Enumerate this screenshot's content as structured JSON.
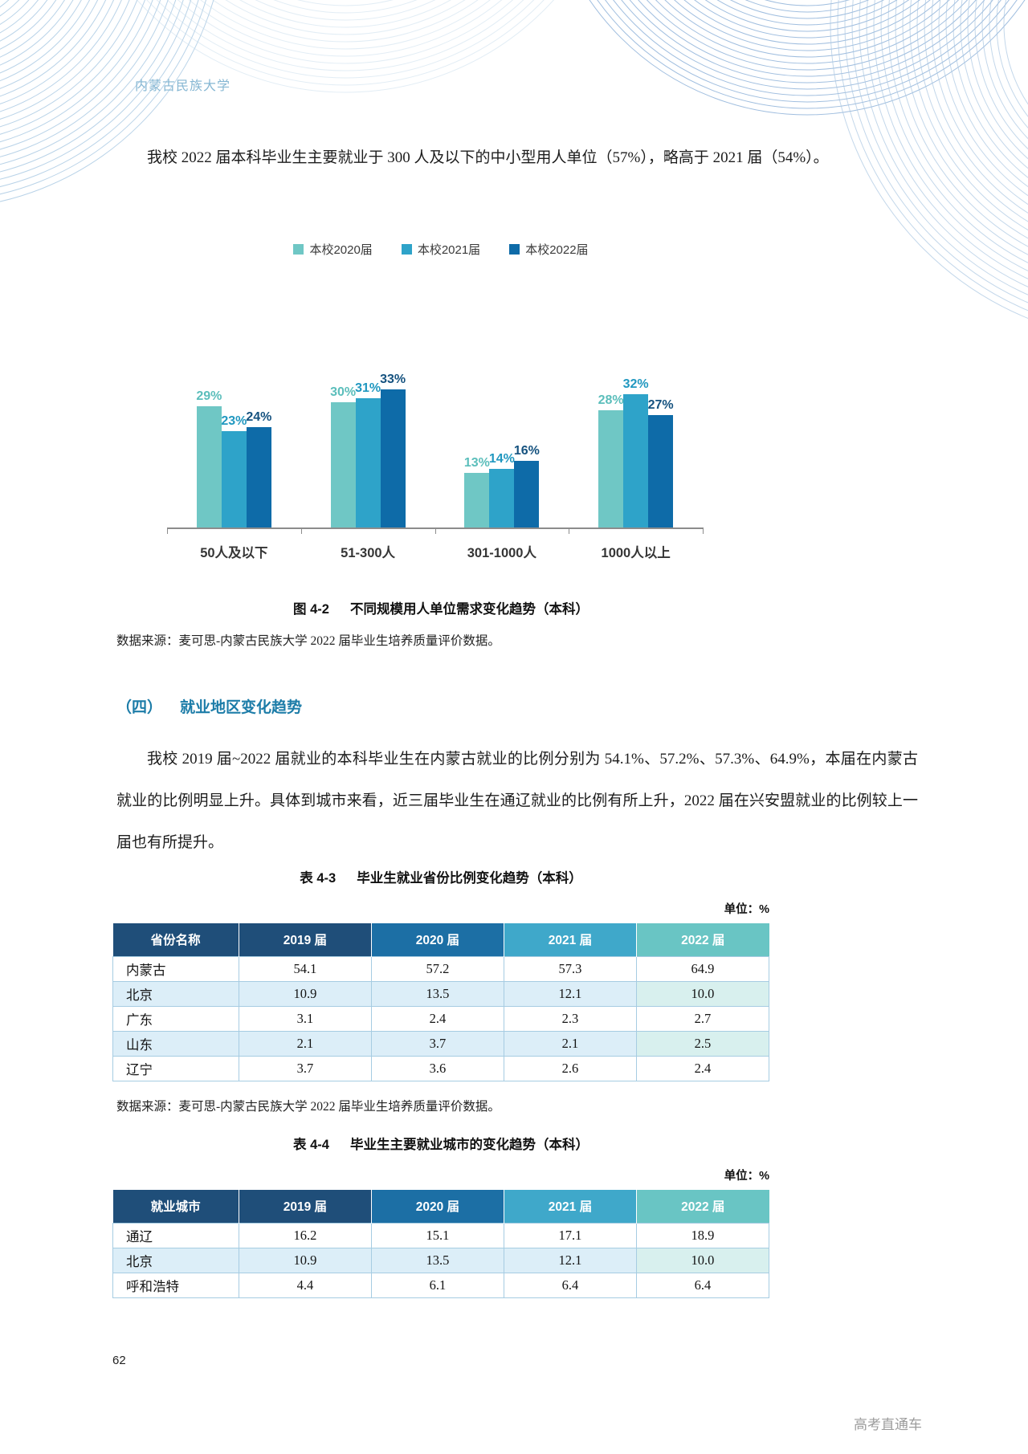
{
  "header": {
    "brand": "内蒙古民族大学"
  },
  "paragraphs": {
    "p1": "我校 2022 届本科毕业生主要就业于 300 人及以下的中小型用人单位（57%），略高于 2021 届（54%）。",
    "p2": "我校 2019 届~2022 届就业的本科毕业生在内蒙古就业的比例分别为 54.1%、57.2%、57.3%、64.9%，本届在内蒙古就业的比例明显上升。具体到城市来看，近三届毕业生在通辽就业的比例有所上升，2022 届在兴安盟就业的比例较上一届也有所提升。"
  },
  "section_heading": {
    "number": "（四）",
    "title": "就业地区变化趋势",
    "color": "#1c7ca8"
  },
  "chart_data": {
    "type": "bar",
    "caption_label": "图 4-2",
    "title": "不同规模用人单位需求变化趋势（本科）",
    "categories": [
      "50人及以下",
      "51-300人",
      "301-1000人",
      "1000人以上"
    ],
    "series": [
      {
        "name": "本校2020届",
        "color": "#6fc7c5",
        "label_color": "#5bbebb",
        "values": [
          29,
          30,
          13,
          28
        ]
      },
      {
        "name": "本校2021届",
        "color": "#2ea3c9",
        "label_color": "#2198c0",
        "values": [
          23,
          31,
          14,
          32
        ]
      },
      {
        "name": "本校2022届",
        "color": "#0e6ba8",
        "label_color": "#15527f",
        "values": [
          24,
          33,
          16,
          27
        ]
      }
    ],
    "value_suffix": "%",
    "ylim": [
      0,
      35
    ],
    "grid": false,
    "legend_position": "top",
    "axis_color": "#8c8c8c"
  },
  "figure_source": "数据来源：麦可思-内蒙古民族大学 2022 届毕业生培养质量评价数据。",
  "table1": {
    "caption_label": "表 4-3",
    "caption_title": "毕业生就业省份比例变化趋势（本科）",
    "unit_label": "单位：%",
    "headers": [
      "省份名称",
      "2019 届",
      "2020 届",
      "2021 届",
      "2022 届"
    ],
    "header_colors": [
      "#1f4e79",
      "#1f4e79",
      "#1c6fa5",
      "#3fa8ca",
      "#69c5c4"
    ],
    "rows": [
      [
        "内蒙古",
        "54.1",
        "57.2",
        "57.3",
        "64.9"
      ],
      [
        "北京",
        "10.9",
        "13.5",
        "12.1",
        "10.0"
      ],
      [
        "广东",
        "3.1",
        "2.4",
        "2.3",
        "2.7"
      ],
      [
        "山东",
        "2.1",
        "3.7",
        "2.1",
        "2.5"
      ],
      [
        "辽宁",
        "3.7",
        "3.6",
        "2.6",
        "2.4"
      ]
    ],
    "source": "数据来源：麦可思-内蒙古民族大学 2022 届毕业生培养质量评价数据。"
  },
  "table2": {
    "caption_label": "表 4-4",
    "caption_title": "毕业生主要就业城市的变化趋势（本科）",
    "unit_label": "单位：%",
    "headers": [
      "就业城市",
      "2019 届",
      "2020 届",
      "2021 届",
      "2022 届"
    ],
    "header_colors": [
      "#1f4e79",
      "#1f4e79",
      "#1c6fa5",
      "#3fa8ca",
      "#69c5c4"
    ],
    "rows": [
      [
        "通辽",
        "16.2",
        "15.1",
        "17.1",
        "18.9"
      ],
      [
        "北京",
        "10.9",
        "13.5",
        "12.1",
        "10.0"
      ],
      [
        "呼和浩特",
        "4.4",
        "6.1",
        "6.4",
        "6.4"
      ]
    ]
  },
  "footer": {
    "page_number": "62",
    "watermark": "高考直通车"
  }
}
